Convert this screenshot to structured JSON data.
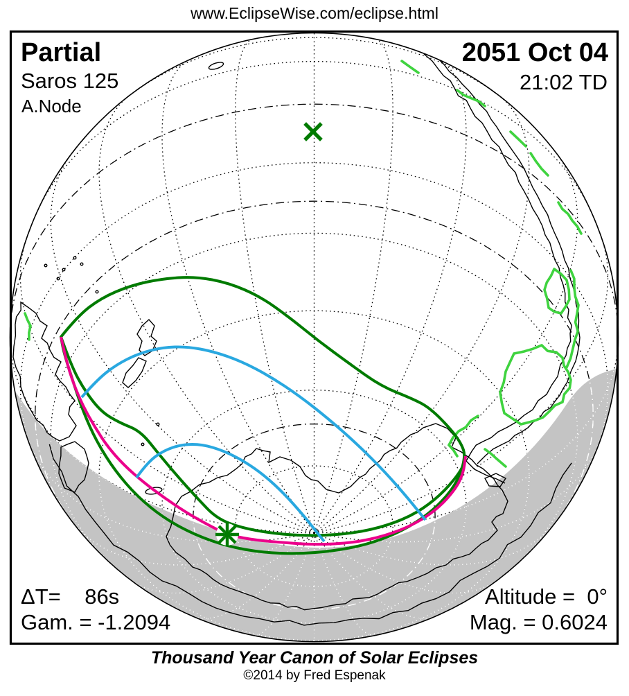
{
  "header": {
    "url": "www.EclipseWise.com/eclipse.html"
  },
  "eclipse": {
    "type": "Partial",
    "saros": "Saros 125",
    "node": "A.Node",
    "date": "2051 Oct 04",
    "time": "21:02 TD",
    "delta_t": "ΔT=    86s",
    "gamma": "Gam. = -1.2094",
    "altitude": "Altitude =  0°",
    "magnitude": "Mag. = 0.6024"
  },
  "footer": {
    "title": "Thousand Year Canon of Solar Eclipses",
    "copyright": "©2014 by Fred Espenak"
  },
  "map": {
    "markers": {
      "greatest_eclipse": "asterisk",
      "sub_solar_point": "x"
    },
    "colors": {
      "eclipse_limit_green": "#007B00",
      "rise_set_magenta": "#EB008B",
      "max_at_horizon_blue": "#29A8E0",
      "coast_highlight_green": "#3FD33F",
      "night_shade_grey": "#C4C4C4",
      "coastline_black": "#000000",
      "background": "#FFFFFF"
    }
  }
}
